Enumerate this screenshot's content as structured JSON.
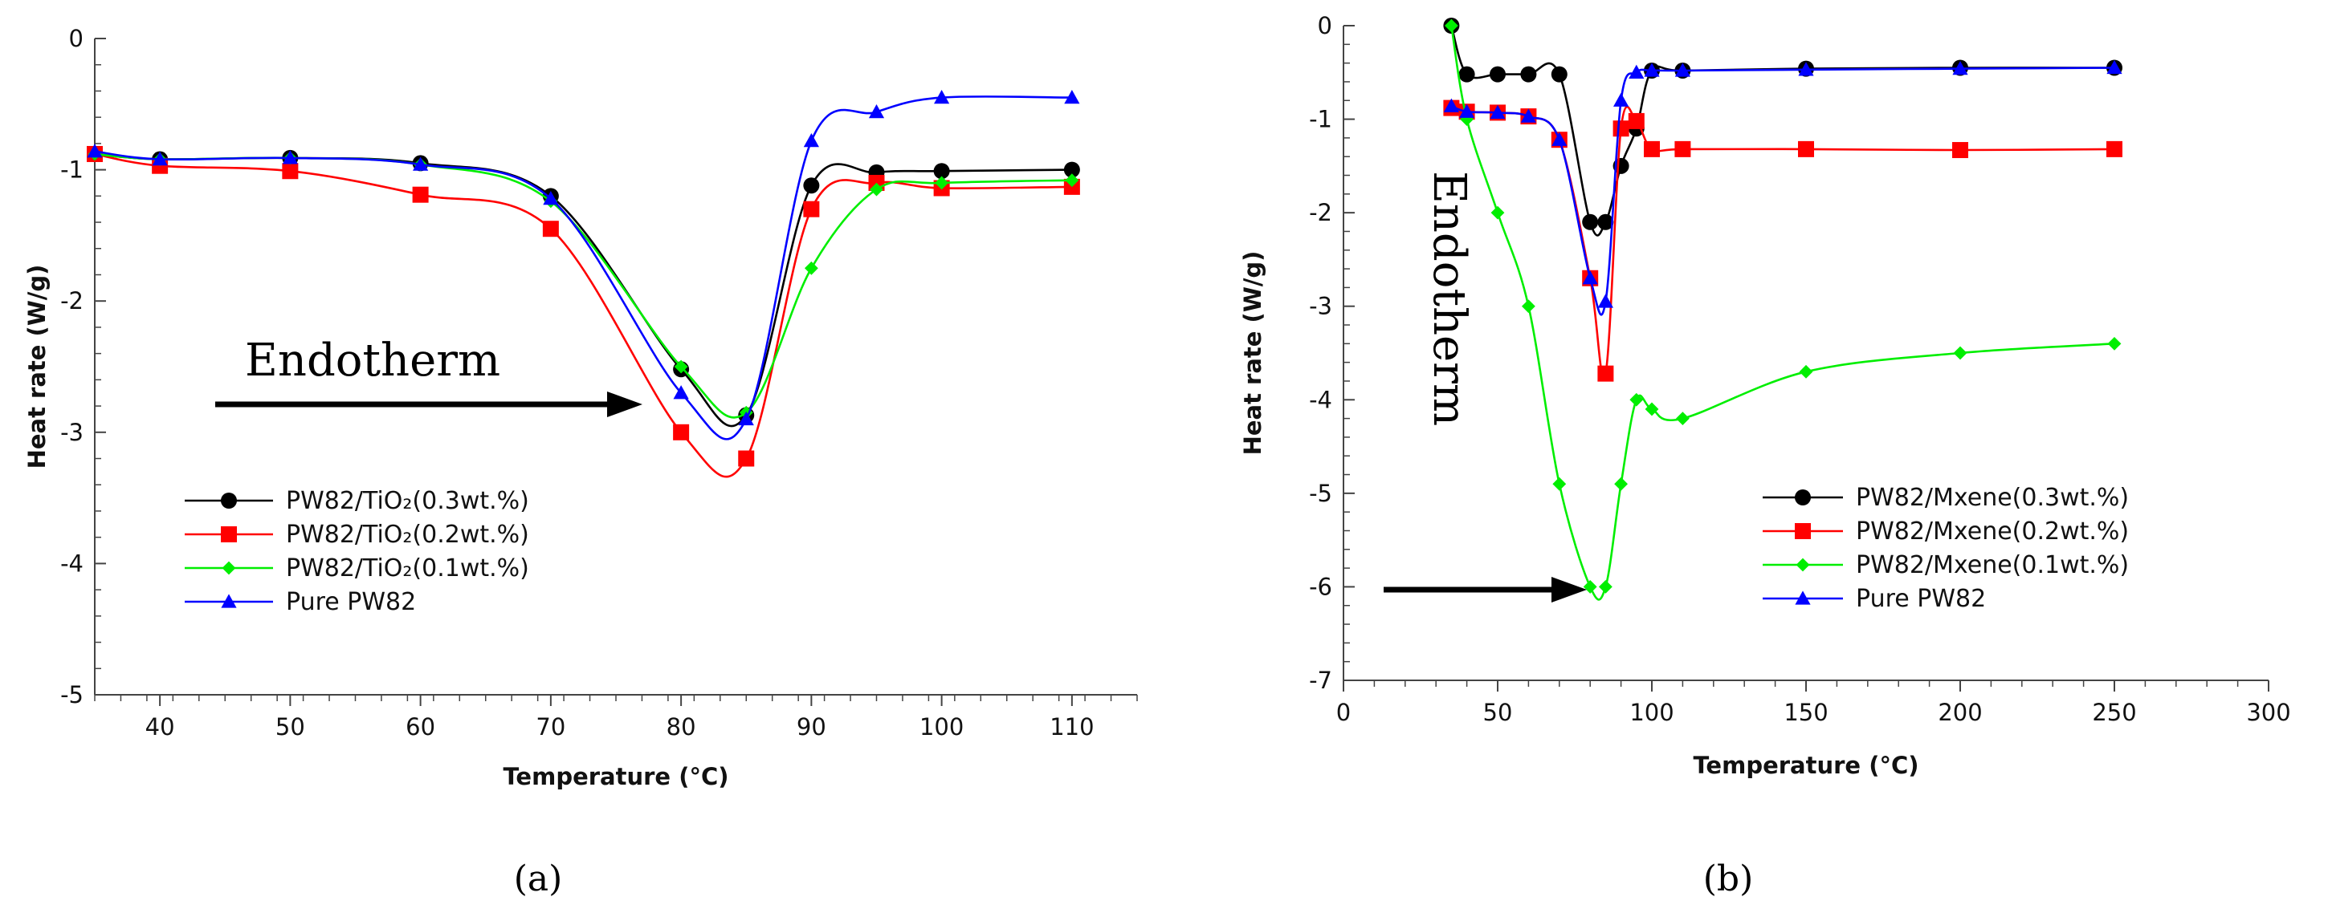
{
  "chart_data": [
    {
      "type": "line",
      "panel_label": "(a)",
      "xlabel": "Temperature (°C)",
      "ylabel": "Heat rate (W/g)",
      "xlim": [
        35,
        115
      ],
      "ylim": [
        -5,
        0
      ],
      "xticks": [
        40,
        50,
        60,
        70,
        80,
        90,
        100,
        110
      ],
      "yticks": [
        0,
        -1,
        -2,
        -3,
        -4,
        -5
      ],
      "annotation": "Endotherm",
      "legend_position": "bottom-left",
      "series": [
        {
          "name": "PW82/TiO₂(0.3wt.%)",
          "color": "#000000",
          "marker": "circle",
          "x": [
            35,
            40,
            50,
            60,
            70,
            80,
            85,
            90,
            95,
            100,
            110
          ],
          "y": [
            -0.88,
            -0.92,
            -0.91,
            -0.95,
            -1.2,
            -2.52,
            -2.87,
            -1.12,
            -1.02,
            -1.01,
            -1.0
          ]
        },
        {
          "name": "PW82/TiO₂(0.2wt.%)",
          "color": "#ff0000",
          "marker": "square",
          "x": [
            35,
            40,
            50,
            60,
            70,
            80,
            85,
            90,
            95,
            100,
            110
          ],
          "y": [
            -0.88,
            -0.97,
            -1.01,
            -1.19,
            -1.45,
            -3.0,
            -3.2,
            -1.3,
            -1.1,
            -1.14,
            -1.13
          ]
        },
        {
          "name": "PW82/TiO₂(0.1wt.%)",
          "color": "#00ee00",
          "marker": "diamond",
          "x": [
            35,
            40,
            50,
            60,
            70,
            80,
            85,
            90,
            95,
            100,
            110
          ],
          "y": [
            -0.88,
            -0.92,
            -0.91,
            -0.96,
            -1.24,
            -2.5,
            -2.85,
            -1.75,
            -1.15,
            -1.1,
            -1.08
          ]
        },
        {
          "name": "Pure PW82",
          "color": "#0000ff",
          "marker": "triangle",
          "x": [
            35,
            40,
            50,
            60,
            70,
            80,
            85,
            90,
            95,
            100,
            110
          ],
          "y": [
            -0.86,
            -0.92,
            -0.91,
            -0.96,
            -1.22,
            -2.7,
            -2.9,
            -0.78,
            -0.56,
            -0.45,
            -0.45
          ]
        }
      ]
    },
    {
      "type": "line",
      "panel_label": "(b)",
      "xlabel": "Temperature (°C)",
      "ylabel": "Heat rate (W/g)",
      "xlim": [
        0,
        300
      ],
      "ylim": [
        -7,
        0
      ],
      "xticks": [
        0,
        50,
        100,
        150,
        200,
        250,
        300
      ],
      "yticks": [
        0,
        -1,
        -2,
        -3,
        -4,
        -5,
        -6,
        -7
      ],
      "annotation": "Endotherm",
      "legend_position": "center-right",
      "series": [
        {
          "name": "PW82/Mxene(0.3wt.%)",
          "color": "#000000",
          "marker": "circle",
          "x": [
            35,
            40,
            50,
            60,
            70,
            80,
            85,
            90,
            95,
            100,
            110,
            150,
            200,
            250
          ],
          "y": [
            0.0,
            -0.52,
            -0.52,
            -0.52,
            -0.52,
            -2.1,
            -2.1,
            -1.5,
            -1.1,
            -0.48,
            -0.48,
            -0.46,
            -0.45,
            -0.45
          ]
        },
        {
          "name": "PW82/Mxene(0.2wt.%)",
          "color": "#ff0000",
          "marker": "square",
          "x": [
            35,
            40,
            50,
            60,
            70,
            80,
            85,
            90,
            95,
            100,
            110,
            150,
            200,
            250
          ],
          "y": [
            -0.88,
            -0.92,
            -0.93,
            -0.97,
            -1.22,
            -2.7,
            -3.72,
            -1.1,
            -1.02,
            -1.32,
            -1.32,
            -1.32,
            -1.33,
            -1.32
          ]
        },
        {
          "name": "PW82/Mxene(0.1wt.%)",
          "color": "#00ee00",
          "marker": "diamond",
          "x": [
            35,
            40,
            50,
            60,
            70,
            80,
            85,
            90,
            95,
            100,
            110,
            150,
            200,
            250
          ],
          "y": [
            0.0,
            -1.0,
            -2.0,
            -3.0,
            -4.9,
            -6.0,
            -6.0,
            -4.9,
            -4.0,
            -4.1,
            -4.2,
            -3.7,
            -3.5,
            -3.4
          ]
        },
        {
          "name": "Pure PW82",
          "color": "#0000ff",
          "marker": "triangle",
          "x": [
            35,
            40,
            50,
            60,
            70,
            80,
            85,
            90,
            95,
            100,
            110,
            150,
            200,
            250
          ],
          "y": [
            -0.86,
            -0.92,
            -0.93,
            -0.97,
            -1.22,
            -2.7,
            -2.95,
            -0.8,
            -0.5,
            -0.48,
            -0.48,
            -0.47,
            -0.46,
            -0.45
          ]
        }
      ]
    }
  ]
}
